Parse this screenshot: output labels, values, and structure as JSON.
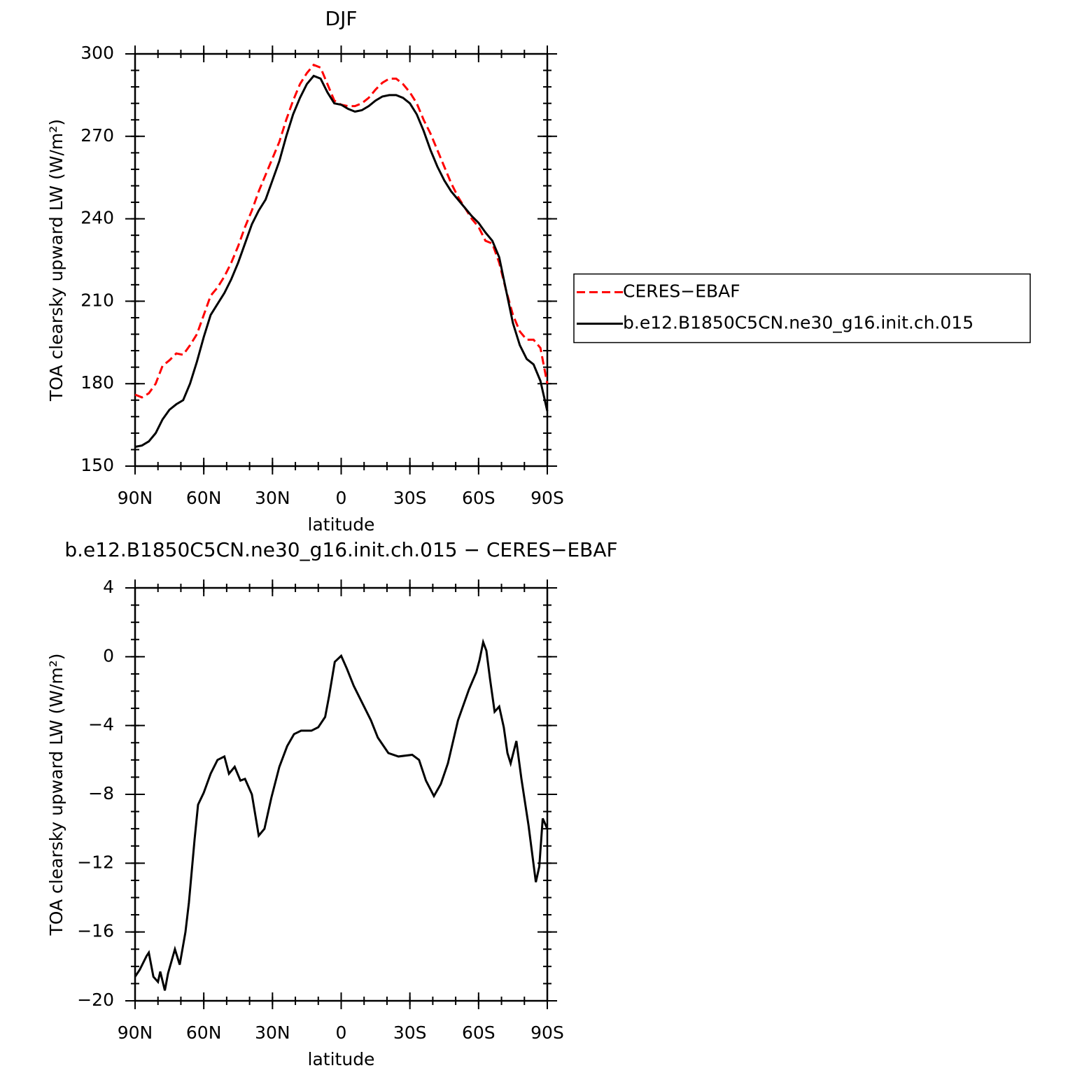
{
  "chart_data": [
    {
      "type": "line",
      "title": "DJF",
      "xlabel": "latitude",
      "ylabel": "TOA clearsky upward LW (W/m²)",
      "x": [
        90,
        87,
        84,
        81,
        78,
        75,
        72,
        69,
        66,
        63,
        60,
        57,
        54,
        51,
        48,
        45,
        42,
        39,
        36,
        33,
        30,
        27,
        24,
        21,
        18,
        15,
        12,
        9,
        6,
        3,
        0,
        -3,
        -6,
        -9,
        -12,
        -15,
        -18,
        -21,
        -24,
        -27,
        -30,
        -33,
        -36,
        -39,
        -42,
        -45,
        -48,
        -51,
        -54,
        -57,
        -60,
        -63,
        -66,
        -69,
        -72,
        -75,
        -78,
        -81,
        -84,
        -87,
        -90
      ],
      "series": [
        {
          "name": "CERES−EBAF",
          "color": "#ff0000",
          "style": "dashed",
          "values": [
            176,
            175,
            176.5,
            180,
            186.5,
            188.5,
            191,
            190.5,
            194,
            198,
            205,
            212,
            215,
            219,
            224,
            230,
            237,
            243,
            250,
            256,
            262,
            268,
            276,
            283,
            289,
            293,
            296,
            295,
            289,
            283,
            281.5,
            281,
            281,
            282,
            284,
            287,
            289.5,
            291,
            291,
            289,
            286,
            282,
            276,
            271,
            265,
            259,
            253,
            248,
            244,
            240,
            237,
            232,
            231,
            224,
            214,
            205,
            199,
            196,
            196,
            193,
            180
          ]
        },
        {
          "name": "b.e12.B1850C5CN.ne30_g16.init.ch.015",
          "color": "#000000",
          "style": "solid",
          "values": [
            157,
            157.5,
            159,
            162,
            167,
            170.5,
            172.5,
            174,
            180,
            188,
            197,
            205,
            209,
            213,
            218,
            224,
            231,
            238,
            243,
            247,
            254,
            261,
            270,
            278,
            284,
            289,
            292,
            291,
            286,
            282,
            281.5,
            280,
            279,
            279.5,
            281,
            283,
            284.5,
            285,
            285,
            284,
            282,
            278,
            272,
            265,
            259,
            254,
            250,
            247,
            244,
            241,
            238.5,
            235,
            232,
            226,
            214,
            202,
            194,
            189,
            187,
            181,
            170
          ]
        }
      ],
      "xlim": [
        90,
        -90
      ],
      "xticks": [
        {
          "value": 90,
          "label": "90N"
        },
        {
          "value": 60,
          "label": "60N"
        },
        {
          "value": 30,
          "label": "30N"
        },
        0,
        {
          "value": -30,
          "label": "30S"
        },
        {
          "value": -60,
          "label": "60S"
        },
        {
          "value": -90,
          "label": "90S"
        }
      ],
      "xminorstep": 10,
      "ylim": [
        150,
        300
      ],
      "yticks": [
        150,
        180,
        210,
        240,
        270,
        300
      ],
      "yminorstep": 6,
      "legend_position": "right"
    },
    {
      "type": "line",
      "title": "b.e12.B1850C5CN.ne30_g16.init.ch.015 − CERES−EBAF",
      "xlabel": "latitude",
      "ylabel": "TOA clearsky upward LW (W/m²)",
      "x": [
        90,
        88,
        85,
        84,
        82,
        80,
        79,
        77,
        75.6,
        72.6,
        70.5,
        68,
        66.5,
        64,
        62.5,
        60,
        57,
        54,
        51,
        49,
        46.5,
        44,
        42,
        39,
        36,
        33.5,
        30.5,
        27,
        23.6,
        20.6,
        17.5,
        13,
        10,
        7,
        5.3,
        2.8,
        0,
        -2.5,
        -5.5,
        -8.5,
        -13,
        -16,
        -20.6,
        -25,
        -31,
        -34,
        -37,
        -40.5,
        -43.5,
        -46.6,
        -51,
        -55.8,
        -59,
        -60.4,
        -62,
        -63.4,
        -65,
        -67,
        -69,
        -71,
        -72.6,
        -74,
        -76.5,
        -78.7,
        -81.8,
        -85,
        -86.5,
        -88,
        -90
      ],
      "series": [
        {
          "color": "#000000",
          "style": "solid",
          "values": [
            -18.6,
            -18.2,
            -17.4,
            -17.2,
            -18.6,
            -18.9,
            -18.3,
            -19.4,
            -18.4,
            -17.0,
            -17.9,
            -16,
            -14.3,
            -10.6,
            -8.6,
            -7.9,
            -6.8,
            -6,
            -5.8,
            -6.8,
            -6.4,
            -7.2,
            -7.1,
            -8,
            -10.4,
            -10,
            -8.2,
            -6.4,
            -5.2,
            -4.5,
            -4.3,
            -4.3,
            -4.1,
            -3.5,
            -2.3,
            -0.3,
            0.05,
            -0.7,
            -1.7,
            -2.5,
            -3.7,
            -4.7,
            -5.6,
            -5.8,
            -5.7,
            -6,
            -7.2,
            -8.1,
            -7.4,
            -6.2,
            -3.7,
            -1.9,
            -0.9,
            -0.2,
            0.85,
            0.35,
            -1.3,
            -3.2,
            -2.9,
            -4.1,
            -5.6,
            -6.2,
            -4.9,
            -7.1,
            -9.8,
            -13.1,
            -12.2,
            -9.4,
            -10
          ]
        }
      ],
      "xlim": [
        90,
        -90
      ],
      "xticks": [
        {
          "value": 90,
          "label": "90N"
        },
        {
          "value": 60,
          "label": "60N"
        },
        {
          "value": 30,
          "label": "30N"
        },
        0,
        {
          "value": -30,
          "label": "30S"
        },
        {
          "value": -60,
          "label": "60S"
        },
        {
          "value": -90,
          "label": "90S"
        }
      ],
      "xminorstep": 10,
      "ylim": [
        -20,
        4
      ],
      "yticks": [
        {
          "value": -20,
          "label": "−20"
        },
        {
          "value": -16,
          "label": "−16"
        },
        {
          "value": -12,
          "label": "−12"
        },
        {
          "value": -8,
          "label": "−8"
        },
        {
          "value": -4,
          "label": "−4"
        },
        0,
        4
      ],
      "yminorstep": 1
    }
  ]
}
